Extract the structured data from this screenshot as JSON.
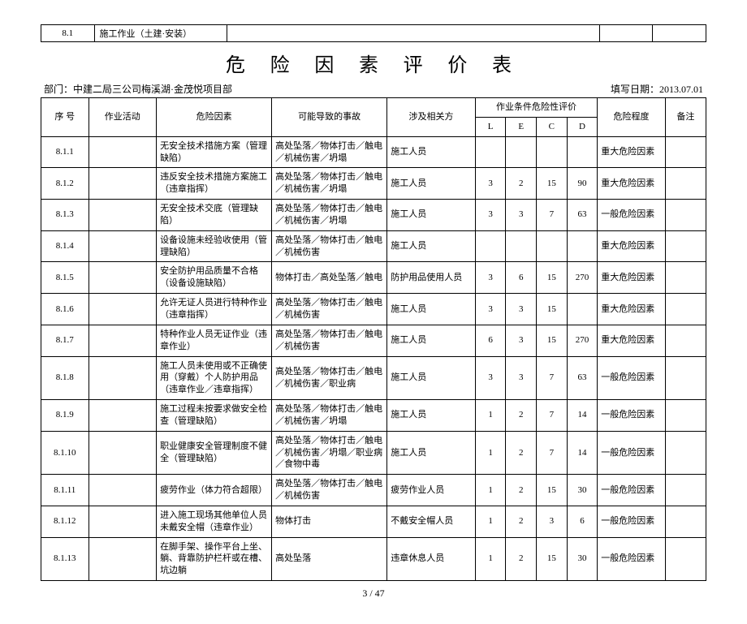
{
  "top": {
    "code": "8.1",
    "name": "施工作业（土建·安装）"
  },
  "title": "危 险 因 素 评 价 表",
  "meta": {
    "dept_label": "部门：",
    "dept": "中建二局三公司梅溪湖·金茂悦项目部",
    "date_label": "填写日期：",
    "date": "2013.07.01"
  },
  "headers": {
    "no": "序  号",
    "activity": "作业活动",
    "risk": "危险因素",
    "accident": "可能导致的事故",
    "party": "涉及相关方",
    "lecd": "作业条件危险性评价",
    "L": "L",
    "E": "E",
    "C": "C",
    "D": "D",
    "level": "危险程度",
    "note": "备注"
  },
  "rows": [
    {
      "no": "8.1.1",
      "activity": "",
      "risk": "无安全技术措施方案（管理缺陷）",
      "accident": "高处坠落／物体打击／触电／机械伤害／坍塌",
      "party": "施工人员",
      "L": "",
      "E": "",
      "C": "",
      "D": "",
      "level": "重大危险因素",
      "note": ""
    },
    {
      "no": "8.1.2",
      "activity": "",
      "risk": "违反安全技术措施方案施工（违章指挥）",
      "accident": "高处坠落／物体打击／触电／机械伤害／坍塌",
      "party": "施工人员",
      "L": "3",
      "E": "2",
      "C": "15",
      "D": "90",
      "level": "重大危险因素",
      "note": ""
    },
    {
      "no": "8.1.3",
      "activity": "",
      "risk": "无安全技术交底（管理缺陷）",
      "accident": "高处坠落／物体打击／触电／机械伤害／坍塌",
      "party": "施工人员",
      "L": "3",
      "E": "3",
      "C": "7",
      "D": "63",
      "level": "一般危险因素",
      "note": ""
    },
    {
      "no": "8.1.4",
      "activity": "",
      "risk": "设备设施未经验收使用（管理缺陷）",
      "accident": "高处坠落／物体打击／触电／机械伤害",
      "party": "施工人员",
      "L": "",
      "E": "",
      "C": "",
      "D": "",
      "level": "重大危险因素",
      "note": ""
    },
    {
      "no": "8.1.5",
      "activity": "",
      "risk": "安全防护用品质量不合格（设备设施缺陷）",
      "accident": "物体打击／高处坠落／触电",
      "party": "防护用品使用人员",
      "L": "3",
      "E": "6",
      "C": "15",
      "D": "270",
      "level": "重大危险因素",
      "note": ""
    },
    {
      "no": "8.1.6",
      "activity": "",
      "risk": "允许无证人员进行特种作业（违章指挥）",
      "accident": "高处坠落／物体打击／触电／机械伤害",
      "party": "施工人员",
      "L": "3",
      "E": "3",
      "C": "15",
      "D": "",
      "level": "重大危险因素",
      "note": ""
    },
    {
      "no": "8.1.7",
      "activity": "",
      "risk": "特种作业人员无证作业（违章作业）",
      "accident": "高处坠落／物体打击／触电／机械伤害",
      "party": "施工人员",
      "L": "6",
      "E": "3",
      "C": "15",
      "D": "270",
      "level": "重大危险因素",
      "note": ""
    },
    {
      "no": "8.1.8",
      "activity": "",
      "risk": "施工人员未使用或不正确使用（穿戴）个人防护用品（违章作业／违章指挥）",
      "accident": "高处坠落／物体打击／触电／机械伤害／职业病",
      "party": "施工人员",
      "L": "3",
      "E": "3",
      "C": "7",
      "D": "63",
      "level": "一般危险因素",
      "note": ""
    },
    {
      "no": "8.1.9",
      "activity": "",
      "risk": "施工过程未按要求做安全检查（管理缺陷）",
      "accident": "高处坠落／物体打击／触电／机械伤害／坍塌",
      "party": "施工人员",
      "L": "1",
      "E": "2",
      "C": "7",
      "D": "14",
      "level": "一般危险因素",
      "note": ""
    },
    {
      "no": "8.1.10",
      "activity": "",
      "risk": "职业健康安全管理制度不健全（管理缺陷）",
      "accident": "高处坠落／物体打击／触电／机械伤害／坍塌／职业病／食物中毒",
      "party": "施工人员",
      "L": "1",
      "E": "2",
      "C": "7",
      "D": "14",
      "level": "一般危险因素",
      "note": ""
    },
    {
      "no": "8.1.11",
      "activity": "",
      "risk": "疲劳作业（体力符合超限）",
      "accident": "高处坠落／物体打击／触电／机械伤害",
      "party": "疲劳作业人员",
      "L": "1",
      "E": "2",
      "C": "15",
      "D": "30",
      "level": "一般危险因素",
      "note": ""
    },
    {
      "no": "8.1.12",
      "activity": "",
      "risk": "进入施工现场其他单位人员未戴安全帽（违章作业）",
      "accident": "物体打击",
      "party": "不戴安全帽人员",
      "L": "1",
      "E": "2",
      "C": "3",
      "D": "6",
      "level": "一般危险因素",
      "note": ""
    },
    {
      "no": "8.1.13",
      "activity": "",
      "risk": "在脚手架、操作平台上坐、躺、背靠防护栏杆或在槽、坑边躺",
      "accident": "高处坠落",
      "party": "违章休息人员",
      "L": "1",
      "E": "2",
      "C": "15",
      "D": "30",
      "level": "一般危险因素",
      "note": ""
    }
  ],
  "footer": "3 / 47"
}
